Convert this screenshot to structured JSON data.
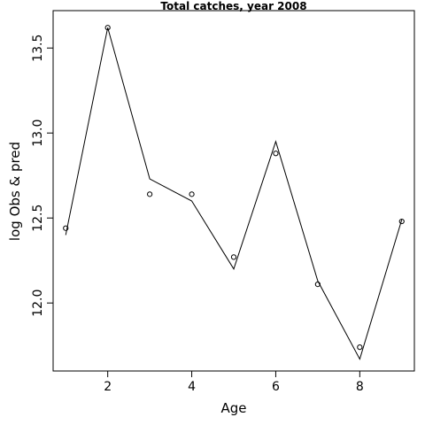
{
  "chart_data": {
    "type": "line",
    "title": "Total catches, year 2008",
    "xlabel": "Age",
    "ylabel": "log Obs & pred",
    "xlim": [
      0.7,
      9.3
    ],
    "ylim": [
      11.6,
      13.72
    ],
    "xticks": [
      2,
      4,
      6,
      8
    ],
    "yticks": [
      12.0,
      12.5,
      13.0,
      13.5
    ],
    "x_tick_labels": [
      "2",
      "4",
      "6",
      "8"
    ],
    "y_tick_labels": [
      "12.0",
      "12.5",
      "13.0",
      "13.5"
    ],
    "grid": false,
    "legend": "none",
    "series": [
      {
        "role": "observed",
        "style": "open-circles",
        "x": [
          1,
          2,
          3,
          4,
          5,
          6,
          7,
          8,
          9
        ],
        "values": [
          12.44,
          13.62,
          12.64,
          12.64,
          12.27,
          12.88,
          12.11,
          11.74,
          12.48
        ]
      },
      {
        "role": "predicted",
        "style": "line",
        "x": [
          1,
          2,
          3,
          4,
          5,
          6,
          7,
          8,
          9
        ],
        "values": [
          12.4,
          13.62,
          12.73,
          12.6,
          12.2,
          12.95,
          12.13,
          11.67,
          12.49
        ]
      }
    ],
    "colors": {
      "line": "#000000",
      "points": "#000000",
      "background": "#ffffff"
    }
  }
}
